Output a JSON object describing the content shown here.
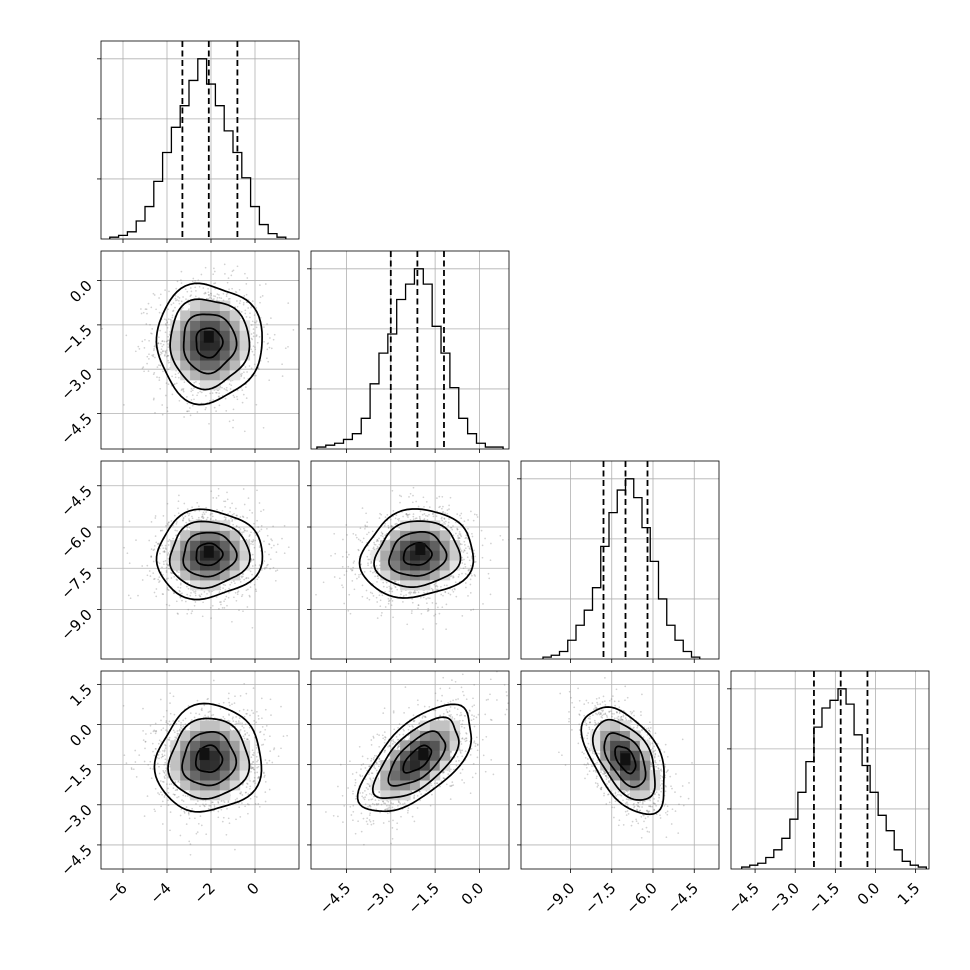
{
  "chart_data": {
    "type": "corner",
    "grid": true,
    "parameters": [
      {
        "range": [
          -7,
          2
        ],
        "ticks": [
          -6,
          -4,
          -2,
          0
        ],
        "tick_labels": [
          "−6",
          "−4",
          "−2",
          "0"
        ],
        "quantiles": [
          -3.3,
          -2.1,
          -0.8
        ],
        "histogram": {
          "bin_edges": [
            -6.6,
            -6.2,
            -5.8,
            -5.4,
            -5.0,
            -4.6,
            -4.2,
            -3.8,
            -3.4,
            -3.0,
            -2.6,
            -2.2,
            -1.8,
            -1.4,
            -1.0,
            -0.6,
            -0.2,
            0.2,
            0.6,
            1.0,
            1.4
          ],
          "heights": [
            1,
            2,
            4,
            10,
            18,
            32,
            48,
            62,
            74,
            88,
            100,
            86,
            74,
            60,
            48,
            34,
            18,
            8,
            3,
            1
          ]
        }
      },
      {
        "range": [
          -5.7,
          1.0
        ],
        "ticks": [
          -4.5,
          -3.0,
          -1.5,
          0.0
        ],
        "tick_labels": [
          "−4.5",
          "−3.0",
          "−1.5",
          "0.0"
        ],
        "quantiles": [
          -3.0,
          -2.1,
          -1.2
        ],
        "histogram": {
          "bin_edges": [
            -5.5,
            -5.2,
            -4.9,
            -4.6,
            -4.3,
            -4.0,
            -3.7,
            -3.4,
            -3.1,
            -2.8,
            -2.5,
            -2.2,
            -1.9,
            -1.6,
            -1.3,
            -1.0,
            -0.7,
            -0.4,
            -0.1,
            0.2,
            0.5,
            0.8
          ],
          "heights": [
            1,
            2,
            3,
            5,
            8,
            16,
            34,
            50,
            60,
            78,
            86,
            94,
            86,
            64,
            50,
            32,
            16,
            8,
            3,
            1,
            1
          ]
        }
      },
      {
        "range": [
          -10.8,
          -3.6
        ],
        "ticks": [
          -9.0,
          -7.5,
          -6.0,
          -4.5
        ],
        "tick_labels": [
          "−9.0",
          "−7.5",
          "−6.0",
          "−4.5"
        ],
        "quantiles": [
          -7.8,
          -7.0,
          -6.2
        ],
        "histogram": {
          "bin_edges": [
            -10.0,
            -9.7,
            -9.4,
            -9.1,
            -8.8,
            -8.5,
            -8.2,
            -7.9,
            -7.6,
            -7.3,
            -7.0,
            -6.7,
            -6.4,
            -6.1,
            -5.8,
            -5.5,
            -5.2,
            -4.9,
            -4.6,
            -4.3
          ],
          "heights": [
            1,
            2,
            4,
            10,
            18,
            26,
            38,
            60,
            78,
            90,
            96,
            86,
            70,
            52,
            32,
            18,
            10,
            4,
            1
          ]
        }
      },
      {
        "range": [
          -5.4,
          2.0
        ],
        "ticks": [
          -4.5,
          -3.0,
          -1.5,
          0.0,
          1.5
        ],
        "tick_labels": [
          "−4.5",
          "−3.0",
          "−1.5",
          "0.0",
          "1.5"
        ],
        "quantiles": [
          -2.3,
          -1.3,
          -0.3
        ],
        "histogram": {
          "bin_edges": [
            -5.0,
            -4.7,
            -4.4,
            -4.1,
            -3.8,
            -3.5,
            -3.2,
            -2.9,
            -2.6,
            -2.3,
            -2.0,
            -1.7,
            -1.4,
            -1.1,
            -0.8,
            -0.5,
            -0.2,
            0.1,
            0.4,
            0.7,
            1.0,
            1.3,
            1.6,
            1.9
          ],
          "heights": [
            1,
            2,
            3,
            6,
            10,
            16,
            26,
            40,
            56,
            74,
            84,
            88,
            94,
            86,
            70,
            54,
            40,
            28,
            20,
            10,
            4,
            2,
            1
          ]
        }
      }
    ],
    "pairs": [
      {
        "row": 1,
        "col": 0,
        "center": [
          -2.1,
          -2.1
        ],
        "spread": [
          1.2,
          1.0
        ],
        "rho": 0.0,
        "peak": [
          -2.1,
          -1.9
        ]
      },
      {
        "row": 2,
        "col": 0,
        "center": [
          -2.1,
          -7.0
        ],
        "spread": [
          1.2,
          0.8
        ],
        "rho": 0.05,
        "peak": [
          -2.1,
          -6.9
        ]
      },
      {
        "row": 2,
        "col": 1,
        "center": [
          -2.1,
          -7.0
        ],
        "spread": [
          0.95,
          0.8
        ],
        "rho": 0.1,
        "peak": [
          -2.0,
          -6.8
        ]
      },
      {
        "row": 3,
        "col": 0,
        "center": [
          -2.1,
          -1.3
        ],
        "spread": [
          1.2,
          1.0
        ],
        "rho": 0.05,
        "peak": [
          -2.3,
          -1.1
        ]
      },
      {
        "row": 3,
        "col": 1,
        "center": [
          -2.1,
          -1.3
        ],
        "spread": [
          0.95,
          1.0
        ],
        "rho": 0.62,
        "peak": [
          -1.9,
          -1.1
        ]
      },
      {
        "row": 3,
        "col": 2,
        "center": [
          -7.0,
          -1.3
        ],
        "spread": [
          0.75,
          1.0
        ],
        "rho": -0.5,
        "peak": [
          -7.0,
          -1.3
        ]
      }
    ],
    "contour_levels_sigma": [
      0.5,
      1.0,
      1.5,
      2.0
    ]
  }
}
